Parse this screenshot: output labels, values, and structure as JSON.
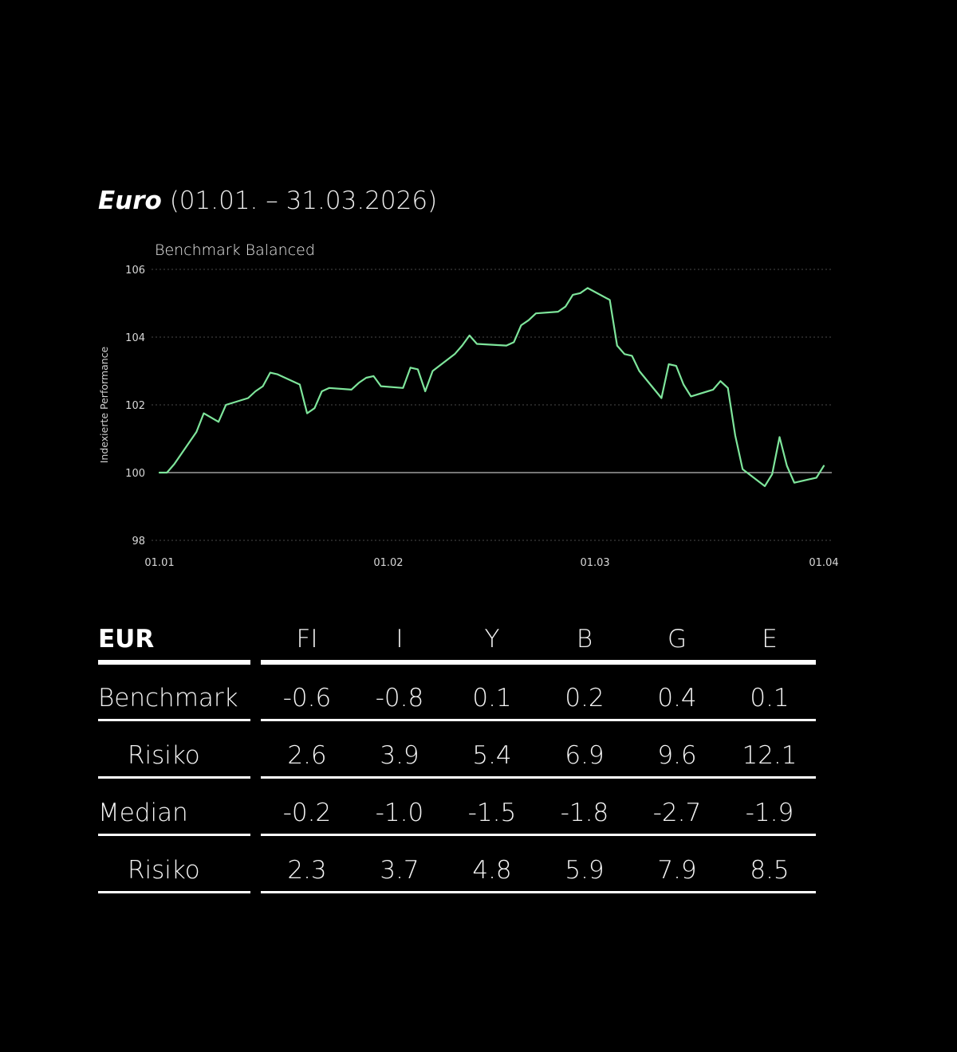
{
  "title": {
    "emphasis": "Euro",
    "period": "(01.01. – 31.03.2026)"
  },
  "chart_data": {
    "type": "line",
    "subtitle": "Benchmark Balanced",
    "ylabel": "Indexierte Performance",
    "xlabel": "",
    "ylim": [
      98,
      106
    ],
    "yticks": [
      98,
      100,
      102,
      104,
      106
    ],
    "xlim": [
      "2026-01-01",
      "2026-04-01"
    ],
    "xticks": [
      {
        "date": "2026-01-01",
        "label": "01.01"
      },
      {
        "date": "2026-02-01",
        "label": "01.02"
      },
      {
        "date": "2026-03-01",
        "label": "01.03"
      },
      {
        "date": "2026-04-01",
        "label": "01.04"
      }
    ],
    "baseline": 100,
    "grid": "horizontal dotted",
    "line_color": "#7ee59b",
    "series": [
      {
        "points": [
          [
            "2026-01-01",
            100.0
          ],
          [
            "2026-01-02",
            100.0
          ],
          [
            "2026-01-03",
            100.25
          ],
          [
            "2026-01-06",
            101.2
          ],
          [
            "2026-01-07",
            101.75
          ],
          [
            "2026-01-09",
            101.5
          ],
          [
            "2026-01-10",
            102.0
          ],
          [
            "2026-01-13",
            102.2
          ],
          [
            "2026-01-14",
            102.4
          ],
          [
            "2026-01-15",
            102.55
          ],
          [
            "2026-01-16",
            102.95
          ],
          [
            "2026-01-17",
            102.9
          ],
          [
            "2026-01-20",
            102.6
          ],
          [
            "2026-01-21",
            101.75
          ],
          [
            "2026-01-22",
            101.9
          ],
          [
            "2026-01-23",
            102.4
          ],
          [
            "2026-01-24",
            102.5
          ],
          [
            "2026-01-27",
            102.45
          ],
          [
            "2026-01-28",
            102.65
          ],
          [
            "2026-01-29",
            102.8
          ],
          [
            "2026-01-30",
            102.85
          ],
          [
            "2026-01-31",
            102.55
          ],
          [
            "2026-02-03",
            102.5
          ],
          [
            "2026-02-04",
            103.1
          ],
          [
            "2026-02-05",
            103.05
          ],
          [
            "2026-02-06",
            102.4
          ],
          [
            "2026-02-07",
            103.0
          ],
          [
            "2026-02-10",
            103.5
          ],
          [
            "2026-02-11",
            103.75
          ],
          [
            "2026-02-12",
            104.05
          ],
          [
            "2026-02-13",
            103.8
          ],
          [
            "2026-02-17",
            103.75
          ],
          [
            "2026-02-18",
            103.85
          ],
          [
            "2026-02-19",
            104.35
          ],
          [
            "2026-02-20",
            104.5
          ],
          [
            "2026-02-21",
            104.7
          ],
          [
            "2026-02-24",
            104.75
          ],
          [
            "2026-02-25",
            104.9
          ],
          [
            "2026-02-26",
            105.25
          ],
          [
            "2026-02-27",
            105.3
          ],
          [
            "2026-02-28",
            105.45
          ],
          [
            "2026-03-03",
            105.1
          ],
          [
            "2026-03-04",
            103.75
          ],
          [
            "2026-03-05",
            103.5
          ],
          [
            "2026-03-06",
            103.45
          ],
          [
            "2026-03-07",
            103.0
          ],
          [
            "2026-03-10",
            102.2
          ],
          [
            "2026-03-11",
            103.2
          ],
          [
            "2026-03-12",
            103.15
          ],
          [
            "2026-03-13",
            102.6
          ],
          [
            "2026-03-14",
            102.25
          ],
          [
            "2026-03-17",
            102.45
          ],
          [
            "2026-03-18",
            102.7
          ],
          [
            "2026-03-19",
            102.5
          ],
          [
            "2026-03-20",
            101.1
          ],
          [
            "2026-03-21",
            100.1
          ],
          [
            "2026-03-24",
            99.6
          ],
          [
            "2026-03-25",
            99.95
          ],
          [
            "2026-03-26",
            101.05
          ],
          [
            "2026-03-27",
            100.2
          ],
          [
            "2026-03-28",
            99.7
          ],
          [
            "2026-03-31",
            99.85
          ],
          [
            "2026-04-01",
            100.2
          ]
        ]
      }
    ]
  },
  "table": {
    "header": {
      "label": "EUR",
      "columns": [
        "FI",
        "I",
        "Y",
        "B",
        "G",
        "E"
      ]
    },
    "rows": [
      {
        "label": "Benchmark",
        "values": [
          "-0.6",
          "-0.8",
          "0.1",
          "0.2",
          "0.4",
          "0.1"
        ]
      },
      {
        "label": "Risiko",
        "values": [
          "2.6",
          "3.9",
          "5.4",
          "6.9",
          "9.6",
          "12.1"
        ]
      },
      {
        "label": "Median",
        "values": [
          "-0.2",
          "-1.0",
          "-1.5",
          "-1.8",
          "-2.7",
          "-1.9"
        ]
      },
      {
        "label": "Risiko",
        "values": [
          "2.3",
          "3.7",
          "4.8",
          "5.9",
          "7.9",
          "8.5"
        ]
      }
    ]
  }
}
